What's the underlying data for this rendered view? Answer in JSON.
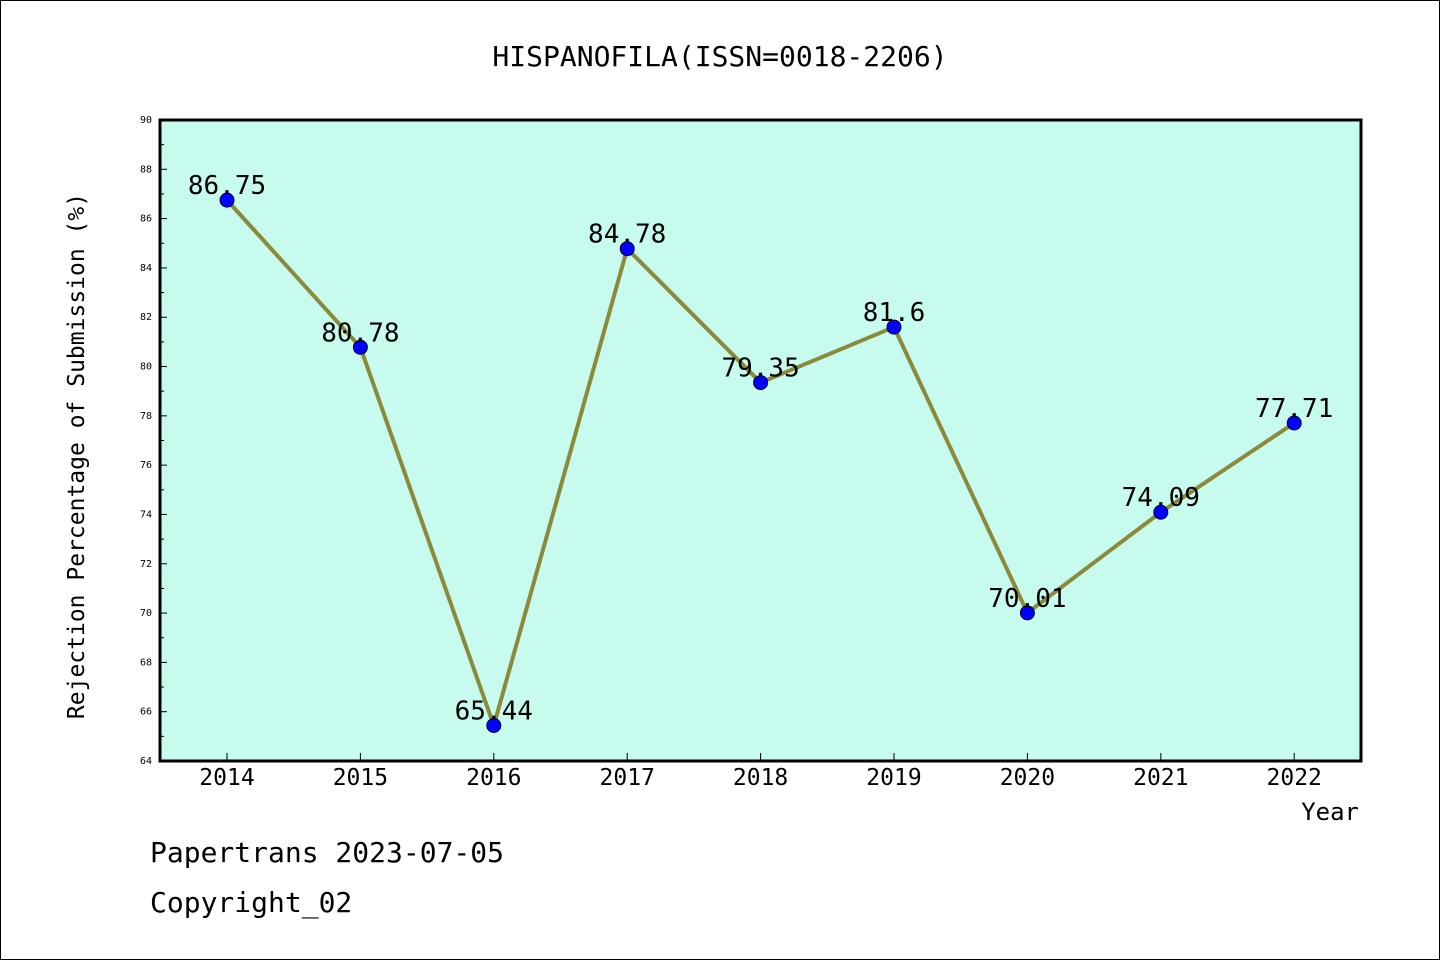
{
  "chart_data": {
    "type": "line",
    "title": "HISPANOFILA(ISSN=0018-2206)",
    "xlabel": "Year",
    "ylabel": "Rejection Percentage of Submission (%)",
    "x": [
      "2014",
      "2015",
      "2016",
      "2017",
      "2018",
      "2019",
      "2020",
      "2021",
      "2022"
    ],
    "series": [
      {
        "values": [
          86.75,
          80.78,
          65.44,
          84.78,
          79.35,
          81.6,
          70.01,
          74.09,
          77.71
        ],
        "labels": [
          "86.75",
          "80.78",
          "65.44",
          "84.78",
          "79.35",
          "81.6",
          "70.01",
          "74.09",
          "77.71"
        ]
      }
    ],
    "ylim": [
      64,
      90
    ],
    "yticks": [
      "64",
      "66",
      "68",
      "70",
      "72",
      "74",
      "76",
      "78",
      "80",
      "82",
      "84",
      "86",
      "88",
      "90"
    ],
    "grid": false,
    "colors": {
      "plot_background": "#c6fbee",
      "line": "#8c8a3a",
      "marker": "#0000ff"
    }
  },
  "footer": {
    "line1": "Papertrans 2023-07-05",
    "line2": "Copyright_02"
  }
}
